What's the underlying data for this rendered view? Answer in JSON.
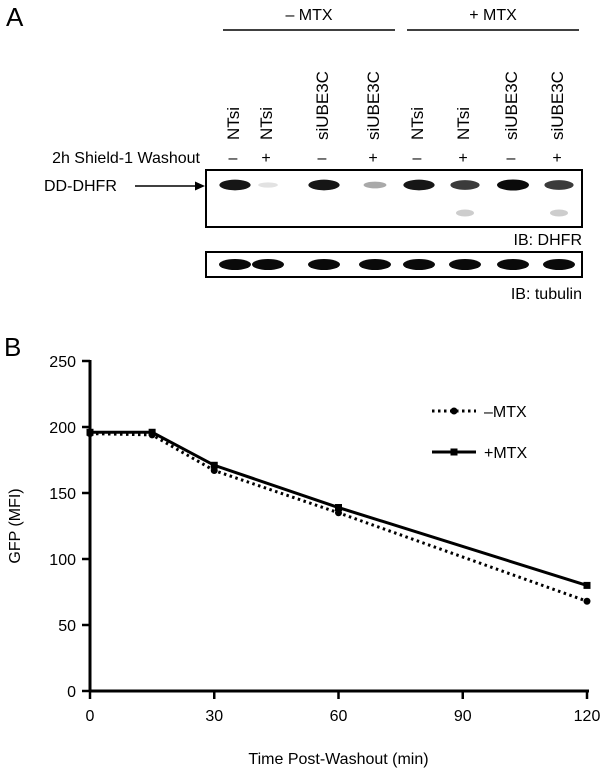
{
  "panel_a": {
    "label": "A",
    "groups": [
      {
        "label": "– MTX",
        "lane_start": 0,
        "lane_end": 3
      },
      {
        "label": "+ MTX",
        "lane_start": 4,
        "lane_end": 7
      }
    ],
    "lanes": [
      {
        "name": "NTsi",
        "washout": "–"
      },
      {
        "name": "NTsi",
        "washout": "+"
      },
      {
        "name": "siUBE3C",
        "washout": "–"
      },
      {
        "name": "siUBE3C",
        "washout": "+"
      },
      {
        "name": "NTsi",
        "washout": "–"
      },
      {
        "name": "NTsi",
        "washout": "+"
      },
      {
        "name": "siUBE3C",
        "washout": "–"
      },
      {
        "name": "siUBE3C",
        "washout": "+"
      }
    ],
    "washout_label": "2h Shield-1 Washout",
    "band_label": "DD-DHFR",
    "blots": [
      {
        "label": "IB: DHFR",
        "intensity": [
          0.95,
          0.12,
          0.95,
          0.35,
          0.95,
          0.8,
          1.0,
          0.8
        ],
        "lower_band_intensity": [
          0,
          0,
          0,
          0,
          0,
          0.25,
          0,
          0.25
        ]
      },
      {
        "label": "IB: tubulin",
        "intensity": [
          1.0,
          1.0,
          1.0,
          1.0,
          1.0,
          1.0,
          1.0,
          1.0
        ]
      }
    ]
  },
  "panel_b": {
    "label": "B",
    "chart_data": {
      "type": "line",
      "xlabel": "Time Post-Washout (min)",
      "ylabel": "GFP (MFI)",
      "xlim": [
        0,
        120
      ],
      "ylim": [
        0,
        250
      ],
      "xticks": [
        0,
        30,
        60,
        90,
        120
      ],
      "yticks": [
        0,
        50,
        100,
        150,
        200,
        250
      ],
      "legend_position": "top-right",
      "series": [
        {
          "name": "–MTX",
          "style": "dotted",
          "marker": "circle",
          "x": [
            0,
            15,
            30,
            60,
            120
          ],
          "y": [
            195,
            194,
            167,
            135,
            68
          ]
        },
        {
          "name": "+MTX",
          "style": "solid",
          "marker": "square",
          "x": [
            0,
            15,
            30,
            60,
            120
          ],
          "y": [
            196,
            196,
            171,
            139,
            80
          ]
        }
      ]
    }
  }
}
